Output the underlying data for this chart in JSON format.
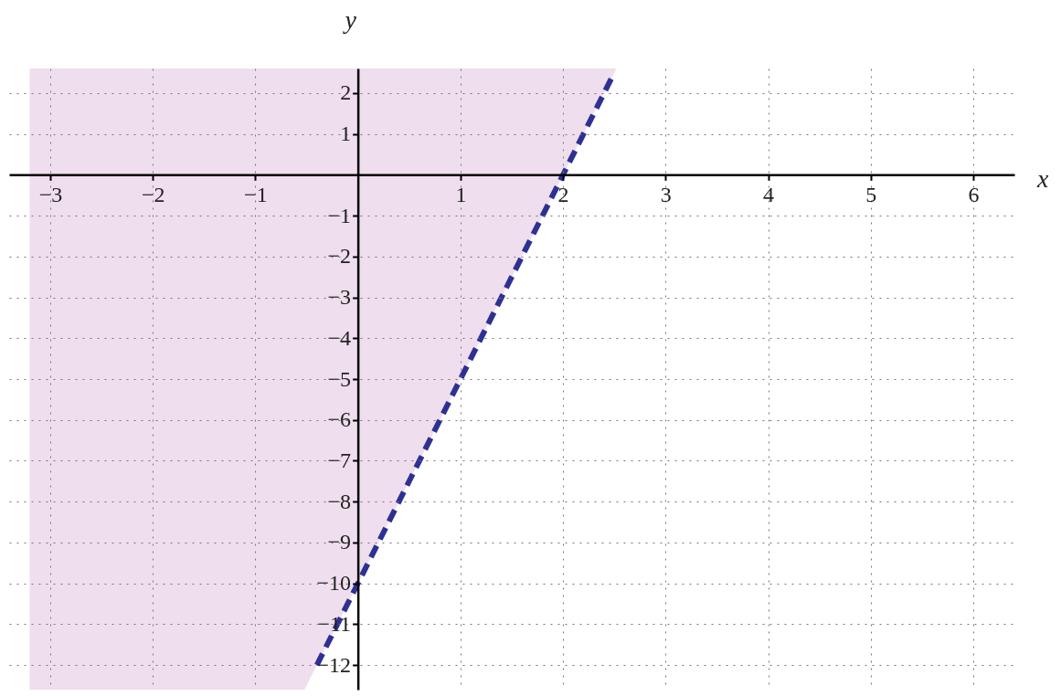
{
  "chart_data": {
    "type": "line",
    "xlabel": "x",
    "ylabel": "y",
    "xlim": [
      -3.4,
      6.4
    ],
    "ylim": [
      -12.6,
      2.6
    ],
    "xticks": [
      -3,
      -2,
      -1,
      1,
      2,
      3,
      4,
      5,
      6
    ],
    "yticks": [
      -12,
      -11,
      -10,
      -9,
      -8,
      -7,
      -6,
      -5,
      -4,
      -3,
      -2,
      -1,
      1,
      2
    ],
    "grid": true,
    "series": [
      {
        "type": "area",
        "color": "#efdeed",
        "x": [
          -3.2,
          -0.52,
          2.52
        ],
        "values": [
          null,
          null,
          null
        ],
        "lower": [
          -12.6,
          -12.6,
          2.6
        ],
        "upper": [
          2.6,
          2.6,
          2.6
        ]
      },
      {
        "color": "#2e3192",
        "line_style": "dashed",
        "x": [
          -0.4,
          2.5
        ],
        "values": [
          -12,
          2.5
        ]
      }
    ]
  }
}
